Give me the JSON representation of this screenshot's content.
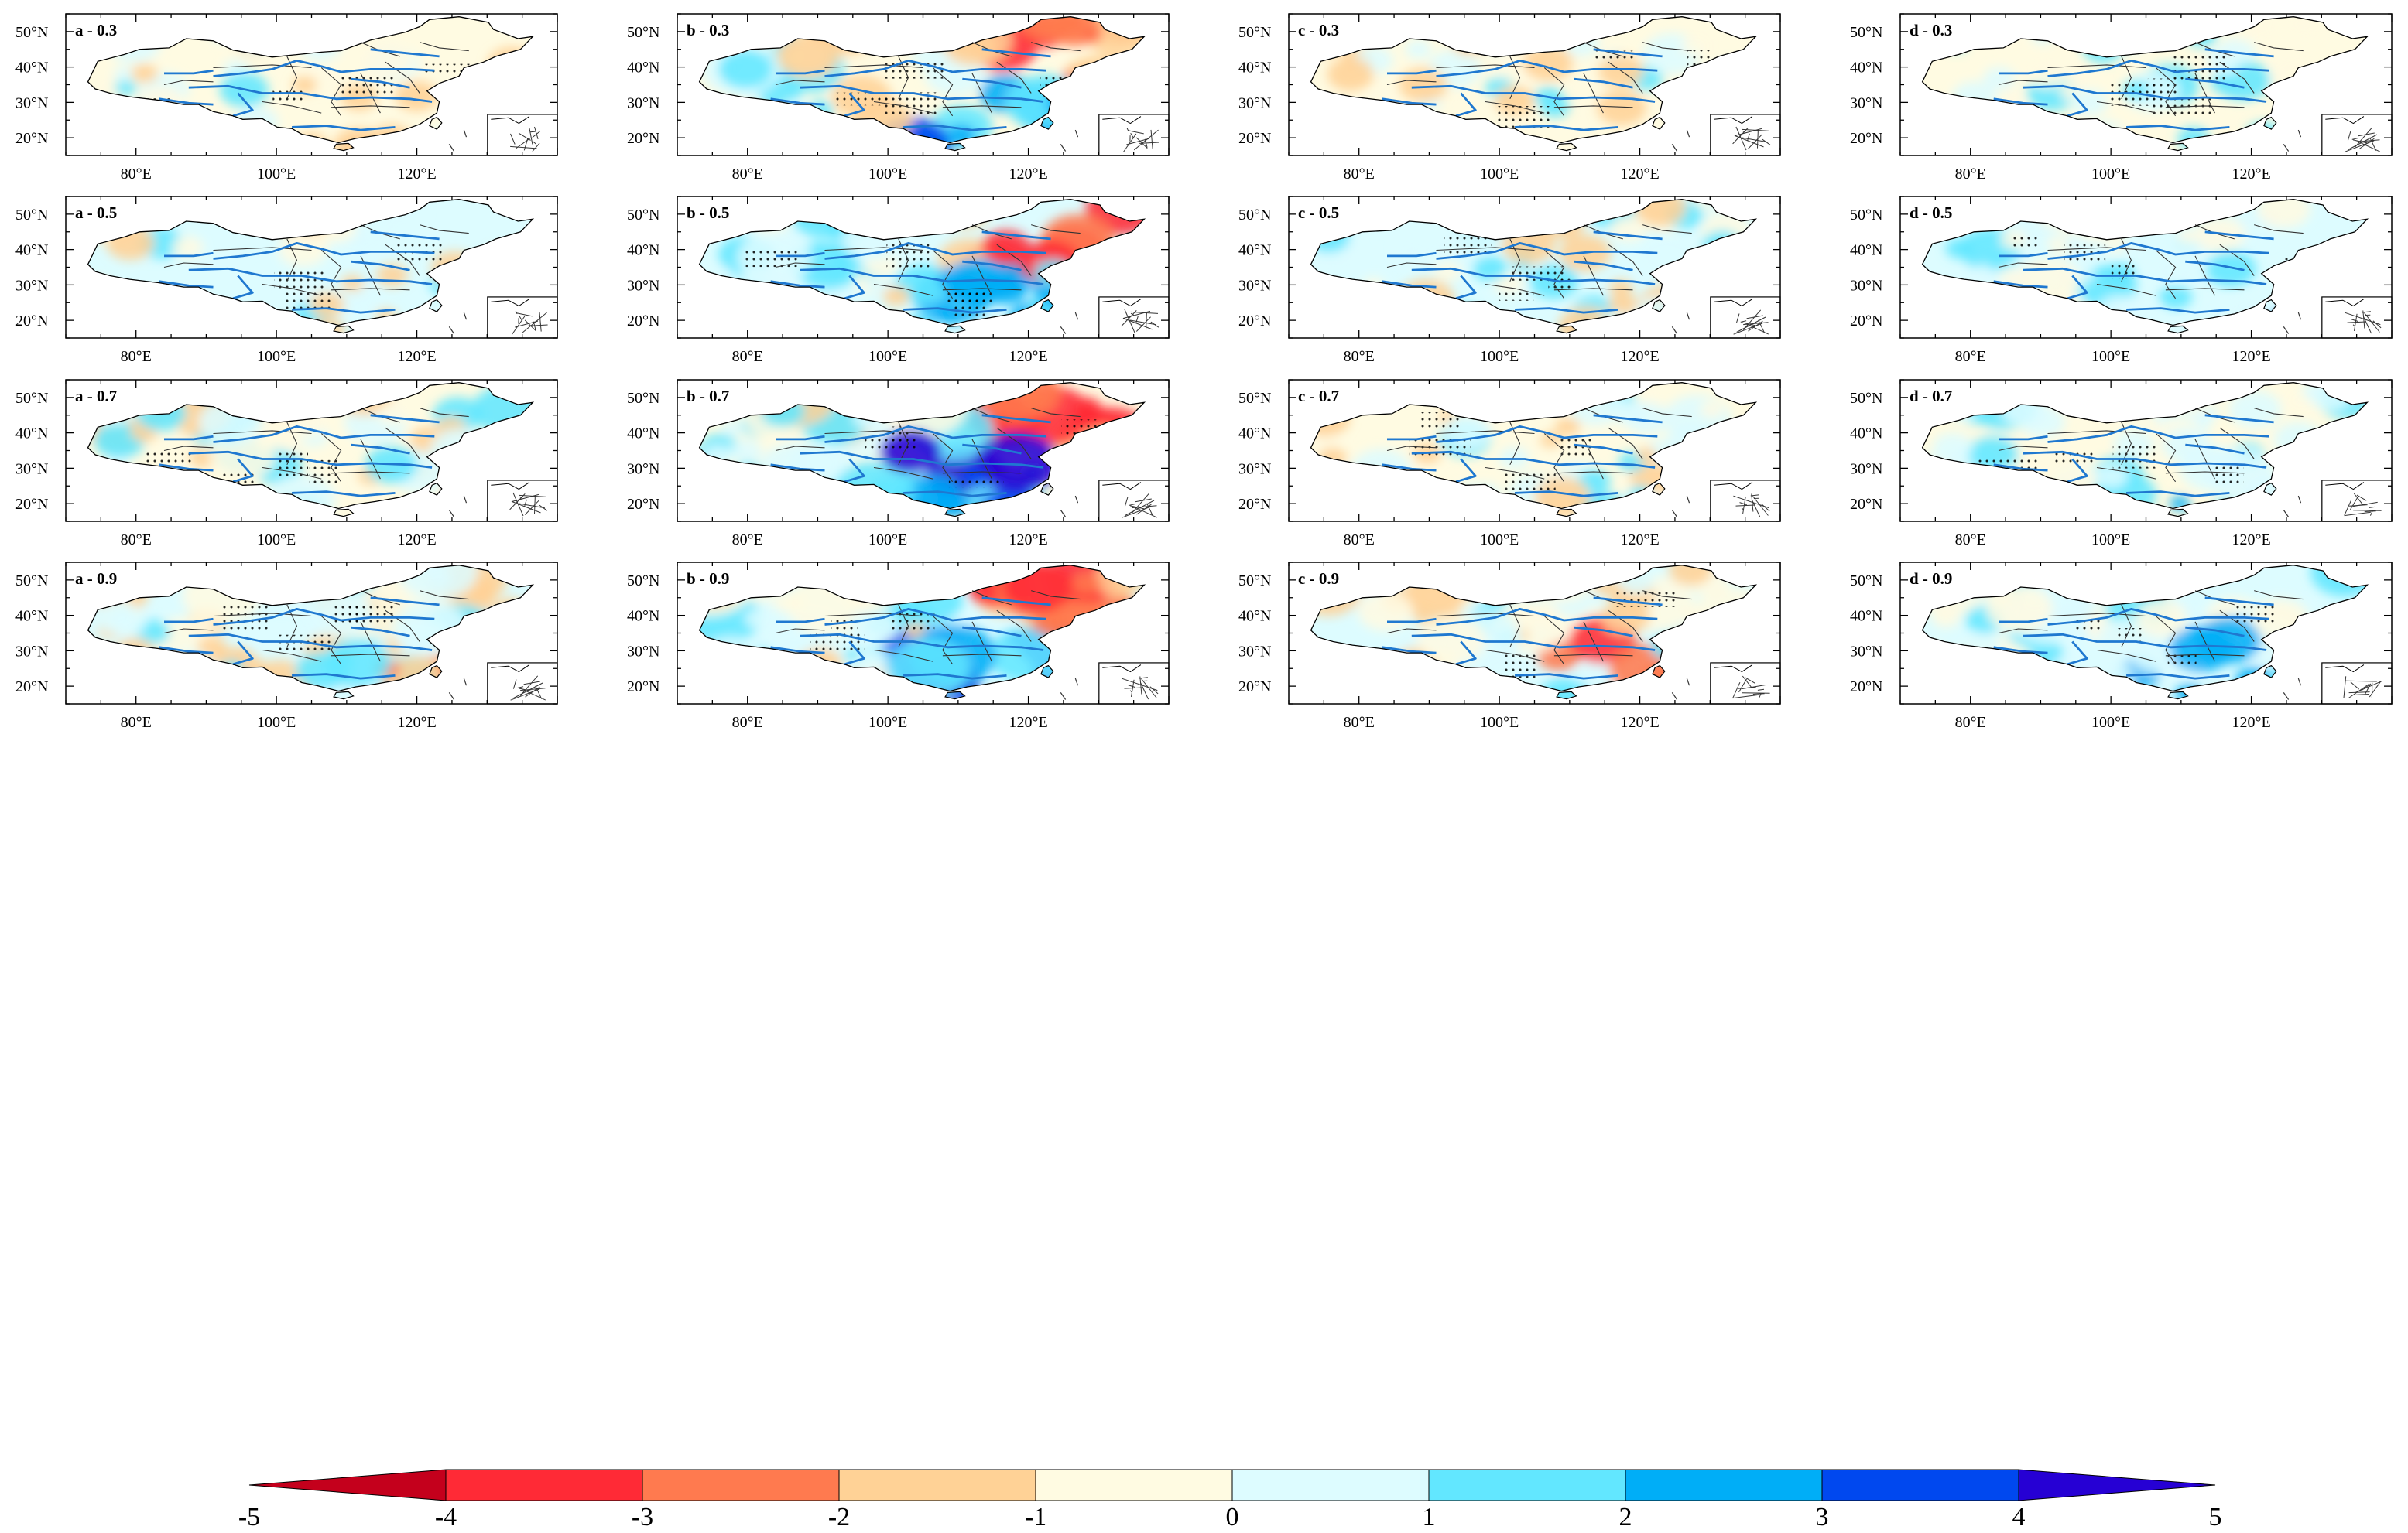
{
  "figure": {
    "description_type": "map-grid",
    "rows": [
      "0.3",
      "0.5",
      "0.7",
      "0.9"
    ],
    "columns": [
      "a",
      "b",
      "c",
      "d"
    ],
    "panel_labels": [
      [
        "a - 0.3",
        "b - 0.3",
        "c - 0.3",
        "d - 0.3"
      ],
      [
        "a - 0.5",
        "b - 0.5",
        "c - 0.5",
        "d - 0.5"
      ],
      [
        "a - 0.7",
        "b - 0.7",
        "c - 0.7",
        "d - 0.7"
      ],
      [
        "a - 0.9",
        "b - 0.9",
        "c - 0.9",
        "d - 0.9"
      ]
    ],
    "lat_ticks": [
      "50°N",
      "40°N",
      "30°N",
      "20°N"
    ],
    "lon_ticks": [
      "80°E",
      "100°E",
      "120°E"
    ],
    "lat_values": [
      50,
      40,
      30,
      20
    ],
    "lon_values": [
      80,
      100,
      120
    ],
    "lat_range": [
      15,
      55
    ],
    "lon_range": [
      70,
      140
    ],
    "intensity": [
      [
        0.3,
        0.75,
        0.3,
        0.35
      ],
      [
        0.35,
        0.8,
        0.4,
        0.45
      ],
      [
        0.55,
        0.95,
        0.5,
        0.6
      ],
      [
        0.8,
        1.0,
        0.75,
        0.8
      ]
    ],
    "colorbar": {
      "labels": [
        "-5",
        "-4",
        "-3",
        "-2",
        "-1",
        "0",
        "1",
        "2",
        "3",
        "4",
        "5"
      ],
      "colors": [
        "#c4001c",
        "#ff2a36",
        "#ff7a4f",
        "#ffd296",
        "#fffbe2",
        "#ddfcff",
        "#62e7ff",
        "#00aef7",
        "#0048ef",
        "#2600d4"
      ],
      "extend": "both"
    },
    "palette": {
      "coast": "#000000",
      "river": "#1f78d0",
      "border": "#333333"
    }
  }
}
